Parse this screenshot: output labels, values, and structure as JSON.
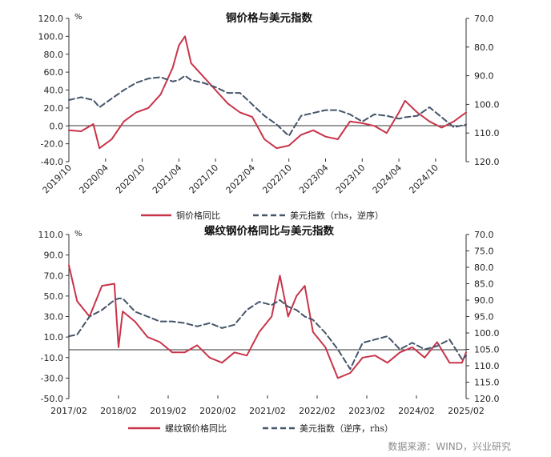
{
  "chart_data": [
    {
      "type": "line",
      "title": "铜价格与美元指数",
      "y_unit": "%",
      "ylim": [
        -40,
        120
      ],
      "y_ticks": [
        "120.0",
        "100.0",
        "80.0",
        "60.0",
        "40.0",
        "20.0",
        "0.0",
        "-20.0",
        "-40.0"
      ],
      "y2lim": [
        70,
        120
      ],
      "y2_inverted": true,
      "y2_ticks": [
        "70.0",
        "80.0",
        "90.0",
        "100.0",
        "110.0",
        "120.0"
      ],
      "x_ticks": [
        "2019/10",
        "2020/04",
        "2020/10",
        "2021/04",
        "2021/10",
        "2022/04",
        "2022/10",
        "2023/04",
        "2023/10",
        "2024/04",
        "2024/10"
      ],
      "x_range": [
        "2019/10",
        "2025/03"
      ],
      "legend_placement": "bottom",
      "series": [
        {
          "name": "铜价格同比",
          "axis": "left",
          "color": "#c8344a",
          "x": [
            "2019/10",
            "2019/12",
            "2020/02",
            "2020/03",
            "2020/05",
            "2020/07",
            "2020/09",
            "2020/11",
            "2021/01",
            "2021/03",
            "2021/04",
            "2021/05",
            "2021/06",
            "2021/08",
            "2021/10",
            "2021/12",
            "2022/02",
            "2022/04",
            "2022/06",
            "2022/08",
            "2022/10",
            "2022/12",
            "2023/02",
            "2023/04",
            "2023/06",
            "2023/08",
            "2023/10",
            "2023/12",
            "2024/02",
            "2024/04",
            "2024/05",
            "2024/07",
            "2024/09",
            "2024/11",
            "2025/01",
            "2025/03"
          ],
          "values": [
            -5,
            -6,
            2,
            -25,
            -15,
            5,
            15,
            20,
            35,
            65,
            90,
            100,
            70,
            55,
            40,
            25,
            15,
            10,
            -15,
            -25,
            -22,
            -10,
            -5,
            -12,
            -15,
            5,
            3,
            0,
            -8,
            15,
            28,
            15,
            5,
            -2,
            5,
            15
          ]
        },
        {
          "name": "美元指数（rhs，逆序）",
          "axis": "right",
          "color": "#44546a",
          "dash": "7,4",
          "x": [
            "2019/10",
            "2019/12",
            "2020/02",
            "2020/03",
            "2020/05",
            "2020/07",
            "2020/09",
            "2020/11",
            "2021/01",
            "2021/03",
            "2021/04",
            "2021/05",
            "2021/06",
            "2021/08",
            "2021/10",
            "2021/12",
            "2022/02",
            "2022/04",
            "2022/06",
            "2022/08",
            "2022/10",
            "2022/12",
            "2023/02",
            "2023/04",
            "2023/06",
            "2023/08",
            "2023/10",
            "2023/12",
            "2024/02",
            "2024/04",
            "2024/05",
            "2024/07",
            "2024/09",
            "2024/11",
            "2025/01",
            "2025/03"
          ],
          "values": [
            98.5,
            97.5,
            98.5,
            101,
            98,
            95,
            92.5,
            91,
            90.5,
            92,
            91.5,
            90,
            91.5,
            92.5,
            94,
            96,
            96,
            100,
            104,
            107,
            111,
            104,
            103,
            102,
            102,
            103.5,
            106,
            103.5,
            104,
            105,
            104.5,
            104,
            101,
            104.5,
            108,
            107
          ]
        }
      ]
    },
    {
      "type": "line",
      "title": "螺纹钢价格同比与美元指数",
      "y_unit": "%",
      "ylim": [
        -50,
        110
      ],
      "y_ticks": [
        "110.0",
        "90.0",
        "70.0",
        "50.0",
        "30.0",
        "10.0",
        "-10.0",
        "-30.0",
        "-50.0"
      ],
      "y2lim": [
        70,
        120
      ],
      "y2_inverted": true,
      "y2_ticks": [
        "70.0",
        "75.0",
        "80.0",
        "85.0",
        "90.0",
        "95.0",
        "100.0",
        "105.0",
        "110.0",
        "115.0",
        "120.0"
      ],
      "x_ticks": [
        "2017/02",
        "2018/02",
        "2019/02",
        "2020/02",
        "2021/02",
        "2022/02",
        "2023/02",
        "2024/02",
        "2025/02"
      ],
      "x_range": [
        "2017/02",
        "2025/02"
      ],
      "legend_placement": "bottom",
      "series": [
        {
          "name": "螺纹钢价格同比",
          "axis": "left",
          "color": "#c8344a",
          "x": [
            "2017/02",
            "2017/04",
            "2017/07",
            "2017/10",
            "2018/01",
            "2018/02",
            "2018/03",
            "2018/06",
            "2018/09",
            "2018/12",
            "2019/03",
            "2019/06",
            "2019/09",
            "2019/12",
            "2020/03",
            "2020/06",
            "2020/09",
            "2020/12",
            "2021/03",
            "2021/05",
            "2021/07",
            "2021/09",
            "2021/11",
            "2022/01",
            "2022/04",
            "2022/07",
            "2022/10",
            "2023/01",
            "2023/04",
            "2023/07",
            "2023/10",
            "2024/01",
            "2024/04",
            "2024/07",
            "2024/10",
            "2025/01",
            "2025/02"
          ],
          "values": [
            80,
            45,
            30,
            60,
            62,
            0,
            35,
            25,
            10,
            5,
            -5,
            -5,
            2,
            -10,
            -15,
            -5,
            -8,
            15,
            30,
            70,
            30,
            50,
            60,
            15,
            0,
            -30,
            -25,
            -10,
            -8,
            -15,
            -5,
            0,
            -10,
            5,
            -15,
            -15,
            -5
          ]
        },
        {
          "name": "美元指数（逆序，rhs）",
          "axis": "right",
          "color": "#44546a",
          "dash": "7,4",
          "x": [
            "2017/02",
            "2017/04",
            "2017/07",
            "2017/10",
            "2018/01",
            "2018/02",
            "2018/03",
            "2018/06",
            "2018/09",
            "2018/12",
            "2019/03",
            "2019/06",
            "2019/09",
            "2019/12",
            "2020/03",
            "2020/06",
            "2020/09",
            "2020/12",
            "2021/03",
            "2021/05",
            "2021/07",
            "2021/09",
            "2021/11",
            "2022/01",
            "2022/04",
            "2022/07",
            "2022/10",
            "2023/01",
            "2023/04",
            "2023/07",
            "2023/10",
            "2024/01",
            "2024/04",
            "2024/07",
            "2024/10",
            "2025/01",
            "2025/02"
          ],
          "values": [
            101,
            100.5,
            95,
            93,
            90,
            89.5,
            89.5,
            93.5,
            95,
            96.5,
            96.5,
            97,
            98,
            97,
            98.5,
            97.5,
            93,
            90.5,
            91.5,
            90,
            92,
            93,
            95,
            96,
            100,
            105,
            111,
            103,
            102,
            101,
            105,
            103,
            105,
            104,
            102,
            108,
            107
          ]
        }
      ]
    }
  ],
  "legend_top": [
    "铜价格同比",
    "美元指数（rhs，逆序）"
  ],
  "legend_bottom": [
    "螺纹钢价格同比",
    "美元指数（逆序，rhs）"
  ],
  "source_note": "数据来源：WIND，兴业研究"
}
